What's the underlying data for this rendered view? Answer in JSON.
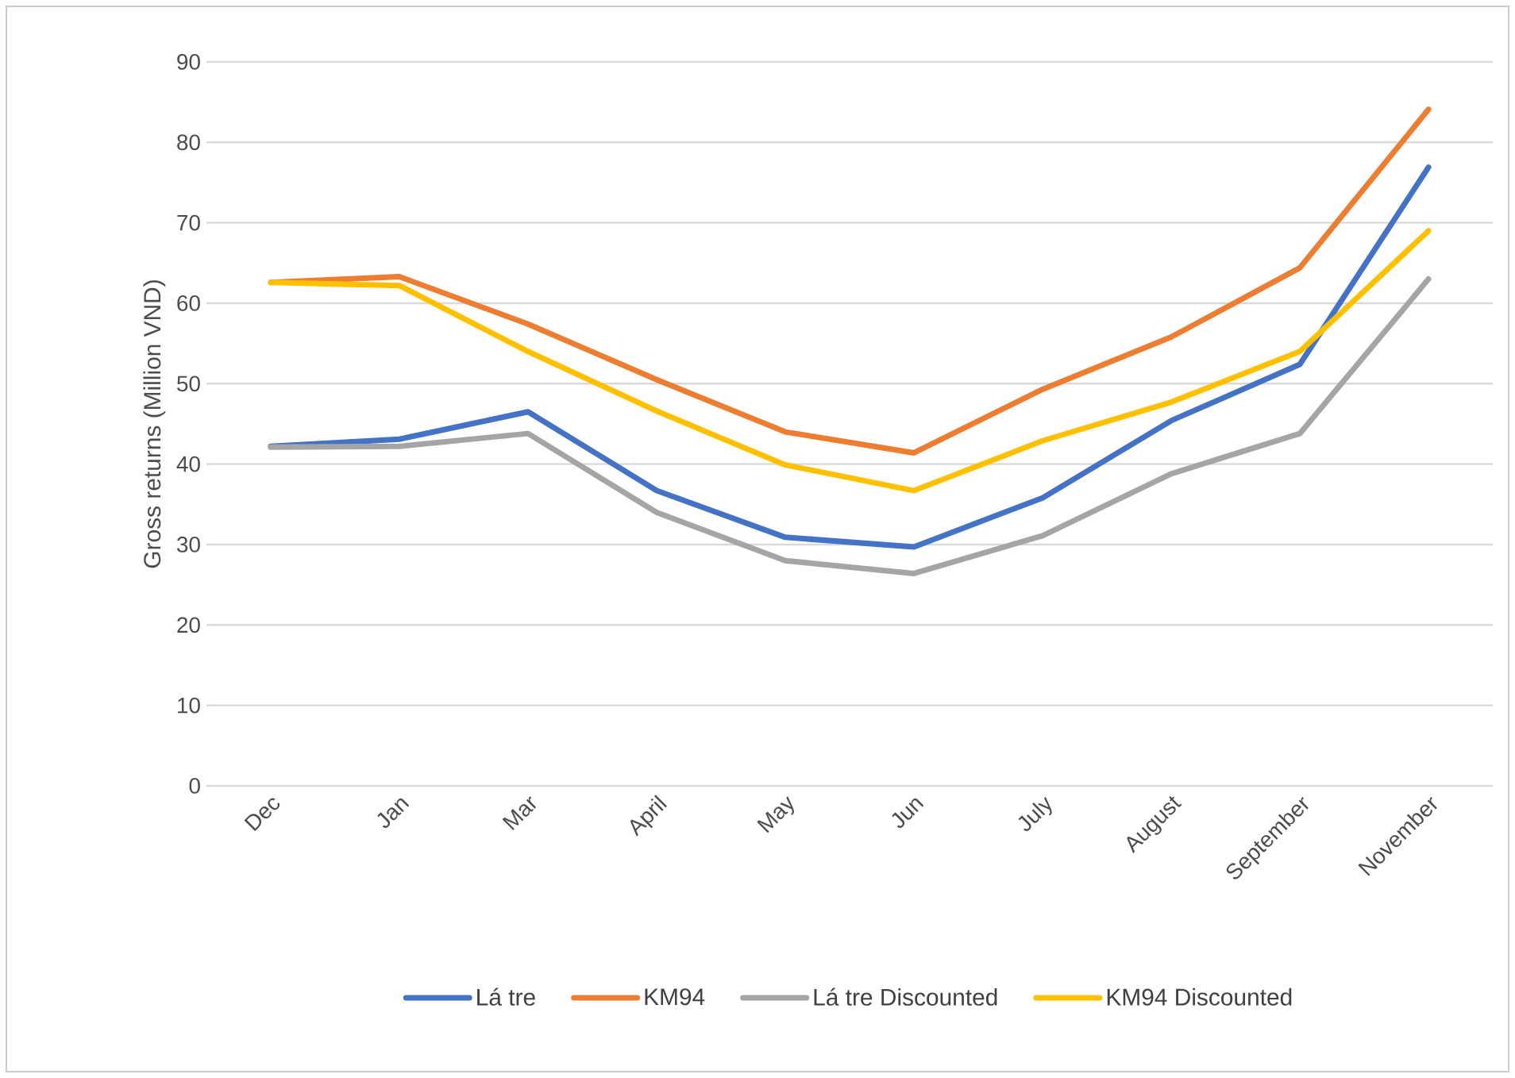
{
  "chart_data": {
    "type": "line",
    "ylabel": "Gross returns (Million VND)",
    "categories": [
      "Dec",
      "Jan",
      "Mar",
      "April",
      "May",
      "Jun",
      "July",
      "August",
      "September",
      "November"
    ],
    "series": [
      {
        "name": "Lá tre",
        "color": "#4472c4",
        "values": [
          42.2,
          43.1,
          46.5,
          36.7,
          30.9,
          29.7,
          35.8,
          45.4,
          52.4,
          76.9
        ]
      },
      {
        "name": "KM94",
        "color": "#ed7d31",
        "values": [
          62.6,
          63.3,
          57.4,
          50.5,
          44.0,
          41.4,
          49.3,
          55.8,
          64.4,
          84.1
        ]
      },
      {
        "name": "Lá tre Discounted",
        "color": "#a5a5a5",
        "values": [
          42.1,
          42.2,
          43.8,
          34.0,
          28.0,
          26.4,
          31.1,
          38.8,
          43.8,
          63.0
        ]
      },
      {
        "name": "KM94 Discounted",
        "color": "#ffc000",
        "values": [
          62.6,
          62.2,
          54.0,
          46.6,
          39.9,
          36.7,
          42.9,
          47.7,
          54.0,
          69.0
        ]
      }
    ],
    "ylim": [
      0,
      90
    ],
    "yticks": [
      0,
      10,
      20,
      30,
      40,
      50,
      60,
      70,
      80,
      90
    ],
    "grid": "y",
    "legend": "bottom",
    "marker": "none",
    "line_style": "solid"
  }
}
